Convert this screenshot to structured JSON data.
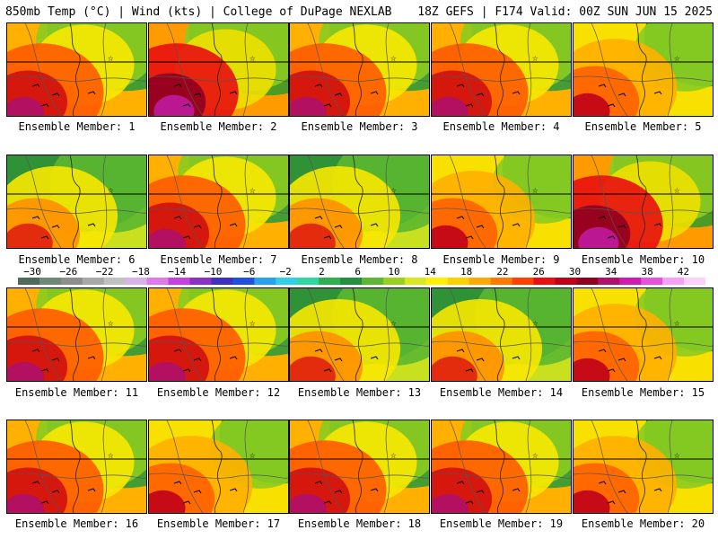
{
  "header": {
    "left": "850mb Temp (°C) | Wind (kts) | College of DuPage NEXLAB",
    "right": "18Z GEFS | F174 Valid: 00Z SUN JUN 15 2025"
  },
  "member_label_prefix": "Ensemble Member:",
  "members": [
    {
      "number": "1",
      "style": "warm"
    },
    {
      "number": "2",
      "style": "hot"
    },
    {
      "number": "3",
      "style": "warm"
    },
    {
      "number": "4",
      "style": "warm"
    },
    {
      "number": "5",
      "style": "mild"
    },
    {
      "number": "6",
      "style": "cool"
    },
    {
      "number": "7",
      "style": "warm"
    },
    {
      "number": "8",
      "style": "cool"
    },
    {
      "number": "9",
      "style": "mild"
    },
    {
      "number": "10",
      "style": "hot"
    },
    {
      "number": "11",
      "style": "warm"
    },
    {
      "number": "12",
      "style": "warm"
    },
    {
      "number": "13",
      "style": "cool"
    },
    {
      "number": "14",
      "style": "cool"
    },
    {
      "number": "15",
      "style": "mild"
    },
    {
      "number": "16",
      "style": "warm"
    },
    {
      "number": "17",
      "style": "mild"
    },
    {
      "number": "18",
      "style": "warm"
    },
    {
      "number": "19",
      "style": "warm"
    },
    {
      "number": "20",
      "style": "mild"
    }
  ],
  "colorbar": {
    "ticks": [
      "−30",
      "−26",
      "−22",
      "−18",
      "−14",
      "−10",
      "−6",
      "−2",
      "2",
      "6",
      "10",
      "14",
      "18",
      "22",
      "26",
      "30",
      "34",
      "38",
      "42"
    ],
    "colors": [
      "#4d6a5a",
      "#6b8a78",
      "#8e8e8e",
      "#a8a8a8",
      "#c0c0c0",
      "#d8b2e8",
      "#e07ae8",
      "#c840e0",
      "#8a30c8",
      "#4030c0",
      "#2050e0",
      "#2aa0f0",
      "#30d0e8",
      "#30d8a0",
      "#2cb050",
      "#239040",
      "#5cb830",
      "#98d020",
      "#d8e820",
      "#fff000",
      "#ffd000",
      "#ffa800",
      "#ff7800",
      "#ff4000",
      "#e81010",
      "#c00018",
      "#900020",
      "#b0106a",
      "#d01ab0",
      "#e850e0",
      "#f8a0f8",
      "#fcd0fc"
    ]
  }
}
